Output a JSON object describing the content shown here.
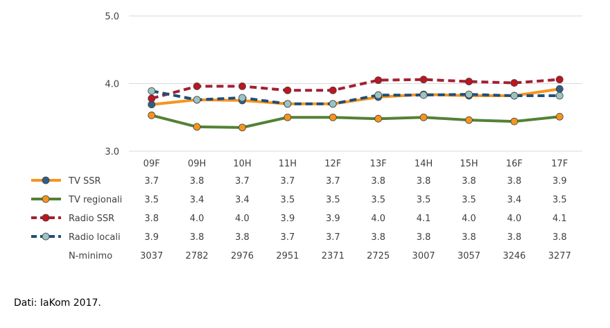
{
  "chart_data": {
    "type": "line",
    "categories": [
      "09F",
      "09H",
      "10H",
      "11H",
      "12F",
      "13F",
      "14H",
      "15H",
      "16F",
      "17F"
    ],
    "ylim": [
      3.0,
      5.0
    ],
    "yticks": [
      "3.0",
      "4.0",
      "5.0"
    ],
    "grid": true,
    "series": [
      {
        "name": "TV SSR",
        "values": [
          3.7,
          3.8,
          3.7,
          3.7,
          3.7,
          3.8,
          3.8,
          3.8,
          3.8,
          3.9
        ],
        "plot": [
          3.69,
          3.76,
          3.75,
          3.7,
          3.7,
          3.8,
          3.84,
          3.82,
          3.82,
          3.92
        ],
        "labels": [
          "3.7",
          "3.8",
          "3.7",
          "3.7",
          "3.7",
          "3.8",
          "3.8",
          "3.8",
          "3.8",
          "3.9"
        ],
        "color": "#f7941d",
        "marker": "#2e5f8a",
        "style": "solid"
      },
      {
        "name": "TV regionali",
        "values": [
          3.5,
          3.4,
          3.4,
          3.5,
          3.5,
          3.5,
          3.5,
          3.5,
          3.4,
          3.5
        ],
        "plot": [
          3.53,
          3.36,
          3.35,
          3.5,
          3.5,
          3.48,
          3.5,
          3.46,
          3.44,
          3.51
        ],
        "labels": [
          "3.5",
          "3.4",
          "3.4",
          "3.5",
          "3.5",
          "3.5",
          "3.5",
          "3.5",
          "3.4",
          "3.5"
        ],
        "color": "#538135",
        "marker": "#f7941d",
        "style": "solid"
      },
      {
        "name": "Radio SSR",
        "values": [
          3.8,
          4.0,
          4.0,
          3.9,
          3.9,
          4.0,
          4.1,
          4.0,
          4.0,
          4.1
        ],
        "plot": [
          3.78,
          3.96,
          3.96,
          3.9,
          3.9,
          4.05,
          4.06,
          4.03,
          4.01,
          4.06
        ],
        "labels": [
          "3.8",
          "4.0",
          "4.0",
          "3.9",
          "3.9",
          "4.0",
          "4.1",
          "4.0",
          "4.0",
          "4.1"
        ],
        "color": "#a31f34",
        "marker": "#c0151f",
        "style": "dashed"
      },
      {
        "name": "Radio locali",
        "values": [
          3.9,
          3.8,
          3.8,
          3.7,
          3.7,
          3.8,
          3.8,
          3.8,
          3.8,
          3.8
        ],
        "plot": [
          3.89,
          3.76,
          3.79,
          3.7,
          3.7,
          3.83,
          3.83,
          3.84,
          3.82,
          3.82
        ],
        "labels": [
          "3.9",
          "3.8",
          "3.8",
          "3.7",
          "3.7",
          "3.8",
          "3.8",
          "3.8",
          "3.8",
          "3.8"
        ],
        "color": "#1f4e79",
        "marker": "#9dc3c1",
        "style": "dashed"
      }
    ],
    "table_rows": [
      {
        "name": "N-minimo",
        "labels": [
          "3037",
          "2782",
          "2976",
          "2951",
          "2371",
          "2725",
          "3007",
          "3057",
          "3246",
          "3277"
        ]
      }
    ]
  },
  "source": "Dati: IaKom 2017."
}
